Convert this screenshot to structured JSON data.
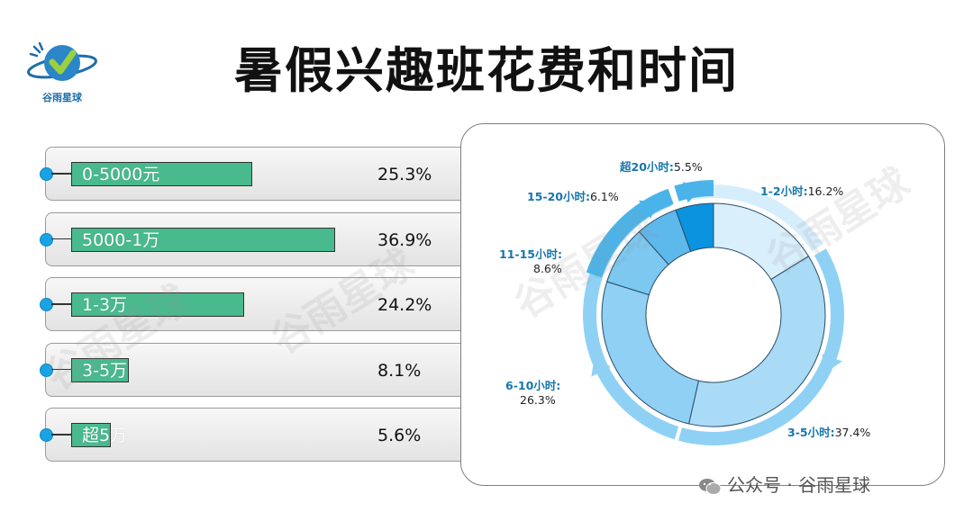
{
  "header": {
    "title": "暑假兴趣班花费和时间",
    "logo_text": "谷雨星球",
    "logo_icon": "planet-checkmark-icon"
  },
  "colors": {
    "bar_fill": "#49b98e",
    "dot": "#1aa3e4",
    "donut_segments": [
      "#d9effc",
      "#a9daf6",
      "#8fd0f4",
      "#7cc8f1",
      "#5db8ec",
      "#0b93df"
    ],
    "outer_arc": [
      "#d6eefc",
      "#8fd1f4",
      "#4ab4ea"
    ],
    "label": "#1676ad"
  },
  "chart_data": [
    {
      "type": "bar",
      "title": "",
      "categories": [
        "0-5000元",
        "5000-1万",
        "1-3万",
        "3-5万",
        "超5万"
      ],
      "values": [
        25.3,
        36.9,
        24.2,
        8.1,
        5.6
      ],
      "value_labels": [
        "25.3%",
        "36.9%",
        "24.2%",
        "8.1%",
        "5.6%"
      ],
      "unit": "%",
      "orientation": "horizontal"
    },
    {
      "type": "pie",
      "style": "donut",
      "categories": [
        "1-2小时",
        "3-5小时",
        "6-10小时",
        "11-15小时",
        "15-20小时",
        "超20小时"
      ],
      "values": [
        16.2,
        37.4,
        26.3,
        8.6,
        6.1,
        5.5
      ],
      "label_names": [
        "1-2小时:",
        "3-5小时:",
        "6-10小时:",
        "11-15小时:",
        "15-20小时:",
        "超20小时:"
      ],
      "value_labels": [
        "16.2%",
        "37.4%",
        "26.3%",
        "8.6%",
        "6.1%",
        "5.5%"
      ],
      "start_angle": "12 o'clock",
      "direction": "clockwise"
    }
  ],
  "watermark": {
    "text": "谷雨星球"
  },
  "footer": {
    "text": "公众号 · 谷雨星球",
    "icon": "wechat-icon"
  }
}
